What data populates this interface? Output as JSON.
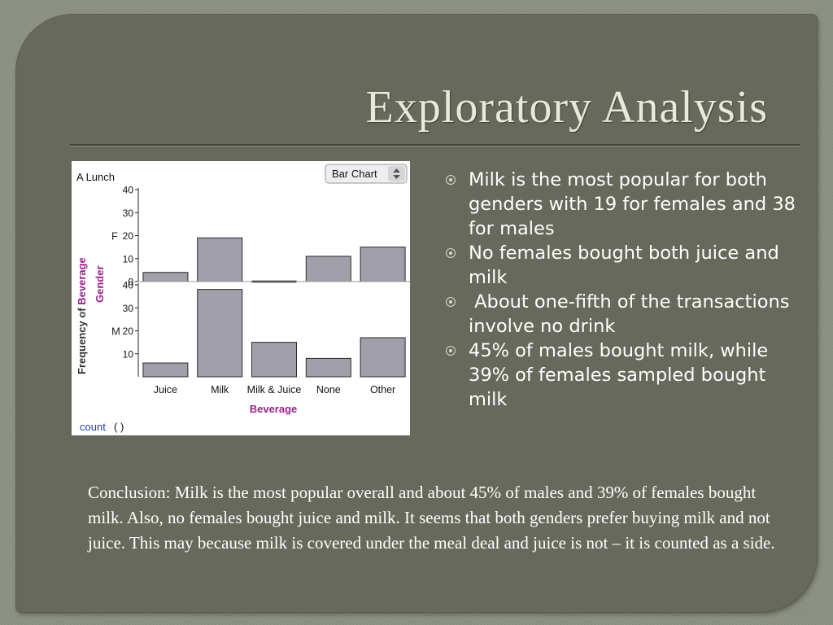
{
  "slide": {
    "title": "Exploratory Analysis",
    "bullets": [
      "Milk is the most popular for both genders with 19 for females and 38 for males",
      "No females bought both juice and milk",
      " About one-fifth of the transactions involve no drink",
      "45% of males bought milk, while 39% of females sampled bought milk"
    ],
    "conclusion": "Conclusion: Milk is the most popular overall and about 45% of males and 39% of females bought milk. Also, no females bought juice and milk. It seems that both genders prefer buying milk and not juice. This may because milk is covered under the meal deal and juice is not – it is counted as a side."
  },
  "chart_data": {
    "type": "bar",
    "panel_label": "A Lunch",
    "chart_type_selector": "Bar Chart",
    "categories": [
      "Juice",
      "Milk",
      "Milk & Juice",
      "None",
      "Other"
    ],
    "xlabel": "Beverage",
    "ylabel_prefix": "Frequency of ",
    "ylabel_var": "Beverage",
    "facet_label": "Gender",
    "facets": [
      {
        "name": "F",
        "values": [
          4,
          19,
          0,
          11,
          15
        ],
        "yticks": [
          0,
          10,
          20,
          30,
          40
        ]
      },
      {
        "name": "M",
        "values": [
          6,
          38,
          15,
          8,
          17
        ],
        "yticks": [
          10,
          20,
          30,
          40
        ]
      }
    ],
    "ylim": [
      0,
      40
    ],
    "footer_label": "count",
    "footer_parens": "(   )",
    "colors": {
      "bar": "#a1a0aa",
      "bar_stroke": "#2a2a2a",
      "var_label": "#9b1f8c",
      "footer": "#1f3fa8"
    }
  }
}
